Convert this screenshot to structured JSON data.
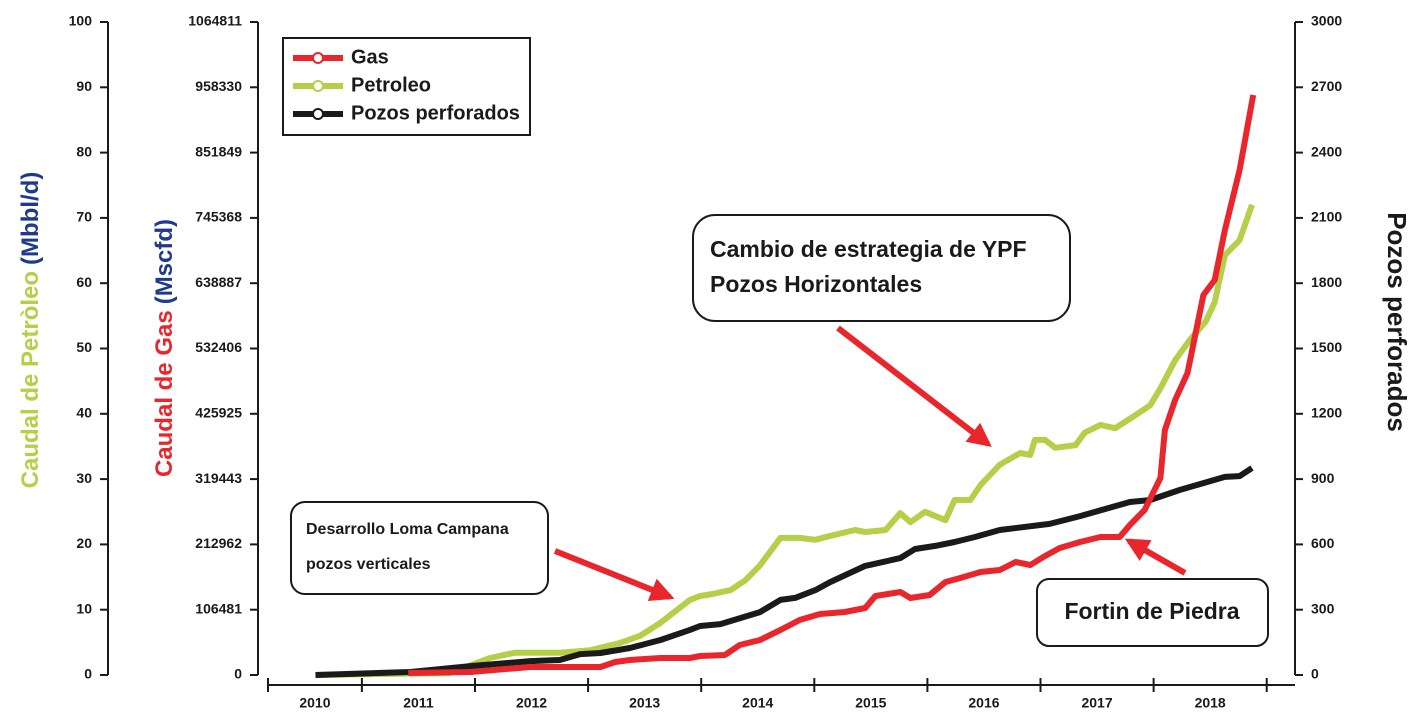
{
  "chart_data": {
    "type": "line",
    "y3_title": [
      {
        "text": "Caudal de Petròleo",
        "color": "#b5cf49"
      },
      {
        "text": "(Mbbl/d)",
        "color": "#1f3a8c"
      }
    ],
    "y_title": [
      {
        "text": "Caudal de Gas",
        "color": "#e8262c"
      },
      {
        "text": "(Mscfd)",
        "color": "#1f3a8c"
      }
    ],
    "y2_title": "Pozos perforados",
    "xlim": [
      2010.17,
      2019.25
    ],
    "xticks": [
      2011,
      2012,
      2013,
      2014,
      2015,
      2016,
      2017,
      2018,
      2019
    ],
    "year_labels": [
      "2010",
      "2011",
      "2012",
      "2013",
      "2014",
      "2015",
      "2016",
      "2017",
      "2018"
    ],
    "ylim": [
      0,
      1064811
    ],
    "yticks": [
      0,
      106481,
      212962,
      319443,
      425925,
      532406,
      638887,
      745368,
      851849,
      958330,
      1064811
    ],
    "y2lim": [
      0,
      3000
    ],
    "y2ticks": [
      0,
      300,
      600,
      900,
      1200,
      1500,
      1800,
      2100,
      2400,
      2700,
      3000
    ],
    "y3lim": [
      0,
      100
    ],
    "y3ticks": [
      0,
      10,
      20,
      30,
      40,
      50,
      60,
      70,
      80,
      90,
      100
    ],
    "series": [
      {
        "name": "Gas",
        "color": "#e8262c",
        "axis": "y",
        "x": [
          2011.41,
          2011.96,
          2012.49,
          2013.11,
          2013.24,
          2013.37,
          2013.64,
          2013.9,
          2013.99,
          2014.21,
          2014.34,
          2014.52,
          2014.7,
          2014.87,
          2015.05,
          2015.27,
          2015.45,
          2015.54,
          2015.76,
          2015.85,
          2016.02,
          2016.16,
          2016.29,
          2016.47,
          2016.64,
          2016.78,
          2016.91,
          2017.04,
          2017.17,
          2017.35,
          2017.53,
          2017.7,
          2017.79,
          2017.92,
          2018.06,
          2018.1,
          2018.19,
          2018.3,
          2018.44,
          2018.54,
          2018.63,
          2018.76,
          2018.88
        ],
        "values": [
          3300,
          4900,
          13000,
          13000,
          21200,
          24500,
          27700,
          27700,
          31000,
          32600,
          48900,
          57100,
          73400,
          89700,
          99500,
          102700,
          109300,
          128800,
          135300,
          125600,
          130400,
          151600,
          158200,
          168000,
          171200,
          184300,
          179400,
          194000,
          207100,
          216900,
          225000,
          225000,
          244600,
          269000,
          321200,
          399500,
          448400,
          492400,
          619600,
          644100,
          725600,
          823400,
          945700
        ]
      },
      {
        "name": "Petroleo",
        "color": "#b5cf49",
        "axis": "y3",
        "x": [
          2010.59,
          2011.78,
          2012.13,
          2012.35,
          2012.75,
          2013.02,
          2013.28,
          2013.46,
          2013.64,
          2013.9,
          2013.99,
          2014.1,
          2014.26,
          2014.39,
          2014.52,
          2014.7,
          2014.87,
          2015.01,
          2015.14,
          2015.36,
          2015.45,
          2015.63,
          2015.76,
          2015.85,
          2015.98,
          2016.16,
          2016.24,
          2016.38,
          2016.47,
          2016.64,
          2016.82,
          2016.91,
          2016.95,
          2017.04,
          2017.13,
          2017.31,
          2017.39,
          2017.53,
          2017.66,
          2017.84,
          2017.97,
          2018.06,
          2018.19,
          2018.32,
          2018.46,
          2018.54,
          2018.63,
          2018.76,
          2018.87
        ],
        "values": [
          0,
          0.3,
          2.6,
          3.4,
          3.4,
          3.8,
          4.9,
          6.0,
          8.0,
          11.5,
          12.1,
          12.4,
          13.0,
          14.5,
          16.8,
          21.0,
          21.0,
          20.7,
          21.3,
          22.2,
          21.9,
          22.2,
          24.8,
          23.4,
          25.0,
          23.7,
          26.8,
          26.8,
          29.1,
          32.2,
          34.0,
          33.7,
          36.0,
          36.0,
          34.8,
          35.2,
          37.1,
          38.3,
          37.8,
          39.8,
          41.3,
          43.9,
          48.2,
          51.3,
          54.1,
          57.1,
          64.3,
          66.6,
          72.0
        ]
      },
      {
        "name": "Pozos perforados",
        "color": "#1a1a1a",
        "axis": "y2",
        "x": [
          2010.59,
          2011.43,
          2011.96,
          2012.49,
          2012.75,
          2012.93,
          2013.11,
          2013.37,
          2013.64,
          2013.9,
          2013.99,
          2014.17,
          2014.52,
          2014.7,
          2014.83,
          2015.01,
          2015.14,
          2015.45,
          2015.76,
          2015.89,
          2016.07,
          2016.24,
          2016.42,
          2016.64,
          2017.08,
          2017.35,
          2017.79,
          2017.97,
          2018.23,
          2018.63,
          2018.76,
          2018.87
        ],
        "values": [
          0,
          14,
          41,
          64,
          69,
          96,
          101,
          124,
          161,
          207,
          225,
          234,
          289,
          345,
          354,
          390,
          427,
          501,
          537,
          579,
          593,
          611,
          634,
          666,
          694,
          730,
          795,
          804,
          850,
          910,
          914,
          951
        ]
      }
    ],
    "annotations": [
      {
        "lines": [
          "Cambio de estrategia de YPF",
          "Pozos Horizontales"
        ]
      },
      {
        "lines": [
          "Desarrollo Loma Campana",
          "pozos verticales"
        ]
      },
      {
        "lines": [
          "Fortin de Piedra"
        ]
      }
    ]
  }
}
